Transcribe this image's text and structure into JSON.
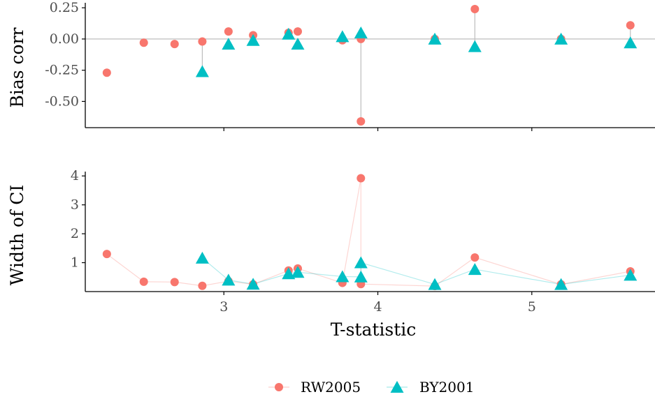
{
  "colors": {
    "rw": "#F8766D",
    "by": "#00BFC4",
    "axis": "#000000",
    "zero": "#bdbdbd",
    "segment": "#bdbdbd"
  },
  "chart_data": [
    {
      "type": "scatter",
      "ylabel": "Bias corr",
      "xlim": [
        2.1,
        5.8
      ],
      "ylim": [
        -0.71,
        0.29
      ],
      "yticks": [
        -0.5,
        -0.25,
        0.0,
        0.25
      ],
      "ytick_labels": [
        "-0.50",
        "-0.25",
        "0.00",
        "0.25"
      ],
      "xticks": [
        3,
        4,
        5
      ],
      "xtick_labels": [
        "",
        "",
        ""
      ],
      "zero_line": 0,
      "series": [
        {
          "name": "RW2005",
          "marker": "circle",
          "x": [
            2.24,
            2.48,
            2.68,
            2.86,
            3.03,
            3.19,
            3.42,
            3.48,
            3.77,
            3.89,
            3.89,
            4.37,
            4.63,
            5.19,
            5.64
          ],
          "y": [
            -0.27,
            -0.03,
            -0.04,
            -0.02,
            0.06,
            0.03,
            0.05,
            0.06,
            -0.01,
            0.0,
            -0.66,
            0.0,
            0.24,
            0.0,
            0.11
          ]
        },
        {
          "name": "BY2001",
          "marker": "triangle",
          "x": [
            2.86,
            3.03,
            3.19,
            3.42,
            3.48,
            3.77,
            3.89,
            4.37,
            4.63,
            5.19,
            5.64
          ],
          "y": [
            -0.26,
            -0.04,
            -0.01,
            0.04,
            -0.04,
            0.02,
            0.05,
            0.0,
            -0.06,
            0.0,
            -0.03
          ]
        }
      ],
      "segments": [
        {
          "x": 2.86,
          "y0": -0.02,
          "y1": -0.26
        },
        {
          "x": 3.89,
          "y0": 0.05,
          "y1": -0.66
        },
        {
          "x": 4.63,
          "y0": 0.24,
          "y1": -0.06
        },
        {
          "x": 5.64,
          "y0": 0.11,
          "y1": -0.03
        }
      ]
    },
    {
      "type": "line",
      "ylabel": "Width of CI",
      "xlabel": "T-statistic",
      "xlim": [
        2.1,
        5.8
      ],
      "ylim": [
        0.0,
        4.15
      ],
      "yticks": [
        1,
        2,
        3,
        4
      ],
      "ytick_labels": [
        "1",
        "2",
        "3",
        "4"
      ],
      "xticks": [
        3,
        4,
        5
      ],
      "xtick_labels": [
        "3",
        "4",
        "5"
      ],
      "series": [
        {
          "name": "RW2005",
          "marker": "circle",
          "x": [
            2.24,
            2.48,
            2.68,
            2.86,
            3.03,
            3.19,
            3.42,
            3.48,
            3.77,
            3.89,
            3.89,
            4.37,
            4.63,
            5.19,
            5.64
          ],
          "y": [
            1.3,
            0.34,
            0.33,
            0.2,
            0.36,
            0.25,
            0.73,
            0.8,
            0.3,
            3.92,
            0.26,
            0.19,
            1.18,
            0.25,
            0.7
          ]
        },
        {
          "name": "BY2001",
          "marker": "triangle",
          "x": [
            2.86,
            3.03,
            3.19,
            3.42,
            3.48,
            3.77,
            3.89,
            3.89,
            4.37,
            4.63,
            5.19,
            5.64
          ],
          "y": [
            1.16,
            0.4,
            0.26,
            0.62,
            0.67,
            0.52,
            0.51,
            1.0,
            0.25,
            0.77,
            0.25,
            0.57
          ]
        }
      ]
    }
  ],
  "legend": {
    "position": "bottom",
    "items": [
      {
        "label": "RW2005",
        "marker": "circle",
        "color": "#F8766D"
      },
      {
        "label": "BY2001",
        "marker": "triangle",
        "color": "#00BFC4"
      }
    ]
  }
}
